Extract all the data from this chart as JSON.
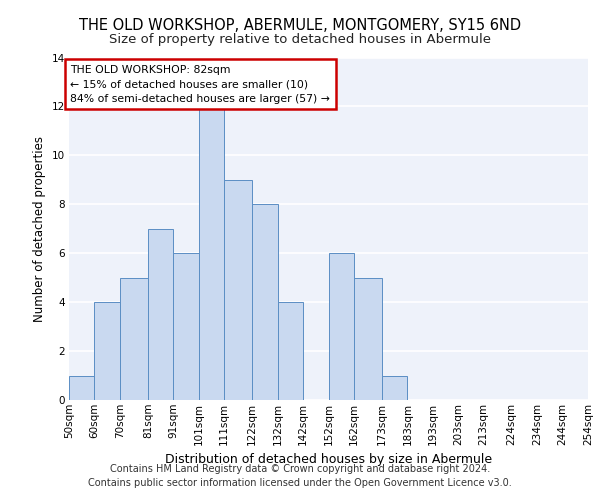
{
  "title": "THE OLD WORKSHOP, ABERMULE, MONTGOMERY, SY15 6ND",
  "subtitle": "Size of property relative to detached houses in Abermule",
  "xlabel": "Distribution of detached houses by size in Abermule",
  "ylabel": "Number of detached properties",
  "bar_edges": [
    50,
    60,
    70,
    81,
    91,
    101,
    111,
    122,
    132,
    142,
    152,
    162,
    173,
    183,
    193,
    203,
    213,
    224,
    234,
    244,
    254
  ],
  "bar_heights": [
    1,
    4,
    5,
    7,
    6,
    12,
    9,
    8,
    4,
    0,
    6,
    5,
    1,
    0,
    0,
    0,
    0,
    0,
    0,
    0
  ],
  "bar_labels": [
    "50sqm",
    "60sqm",
    "70sqm",
    "81sqm",
    "91sqm",
    "101sqm",
    "111sqm",
    "122sqm",
    "132sqm",
    "142sqm",
    "152sqm",
    "162sqm",
    "173sqm",
    "183sqm",
    "193sqm",
    "203sqm",
    "213sqm",
    "224sqm",
    "234sqm",
    "244sqm",
    "254sqm"
  ],
  "bar_color": "#c9d9f0",
  "bar_edge_color": "#5b8ec4",
  "ylim": [
    0,
    14
  ],
  "yticks": [
    0,
    2,
    4,
    6,
    8,
    10,
    12,
    14
  ],
  "annotation_title": "THE OLD WORKSHOP: 82sqm",
  "annotation_line1": "← 15% of detached houses are smaller (10)",
  "annotation_line2": "84% of semi-detached houses are larger (57) →",
  "annotation_box_color": "#ffffff",
  "annotation_box_edge_color": "#cc0000",
  "footer_line1": "Contains HM Land Registry data © Crown copyright and database right 2024.",
  "footer_line2": "Contains public sector information licensed under the Open Government Licence v3.0.",
  "background_color": "#eef2fa",
  "grid_color": "#ffffff",
  "title_fontsize": 10.5,
  "subtitle_fontsize": 9.5,
  "xlabel_fontsize": 9,
  "ylabel_fontsize": 8.5,
  "tick_fontsize": 7.5,
  "annotation_fontsize": 7.8,
  "footer_fontsize": 7.0
}
